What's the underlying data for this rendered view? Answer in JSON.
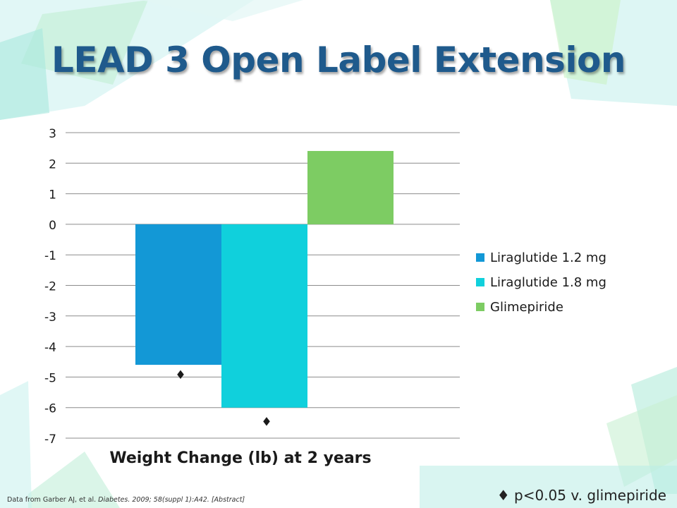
{
  "slide": {
    "title": "LEAD 3 Open Label Extension",
    "footnote_lead": "Data from Garber AJ, et al.",
    "footnote_cite": "Diabetes. 2009; 58(suppl 1):A42. [Abstract]",
    "significance_note": "♦ p<0.05 v. glimepiride"
  },
  "chart_data": {
    "type": "bar",
    "categories": [
      "Weight Change (lb) at 2 years"
    ],
    "series": [
      {
        "name": "Liraglutide 1.2 mg",
        "values": [
          -4.6
        ],
        "color": "#1398d6",
        "marker": "♦"
      },
      {
        "name": "Liraglutide 1.8 mg",
        "values": [
          -6.0
        ],
        "color": "#10d0dc",
        "marker": "♦"
      },
      {
        "name": "Glimepiride",
        "values": [
          2.4
        ],
        "color": "#7dcc63",
        "marker": ""
      }
    ],
    "xlabel": "Weight Change (lb) at 2 years",
    "ylabel": "",
    "ylim": [
      -7,
      3
    ],
    "yticks": [
      3,
      2,
      1,
      0,
      -1,
      -2,
      -3,
      -4,
      -5,
      -6,
      -7
    ],
    "grid": true,
    "legend_position": "right"
  }
}
